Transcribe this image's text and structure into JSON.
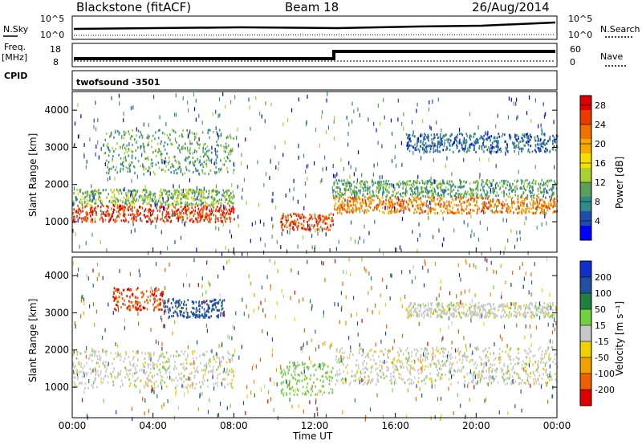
{
  "header": {
    "station": "Blackstone (fitACF)",
    "beam": "Beam 18",
    "date": "26/Aug/2014"
  },
  "side_labels": {
    "nsky": "N.Sky",
    "nsearch": "N.Search",
    "freq": "Freq.",
    "freq_unit": "[MHz]",
    "nave": "Nave",
    "cpid": "CPID",
    "cpid_value": "twofsound  -3501"
  },
  "status_ticks": {
    "nsky_left": [
      "10^5",
      "10^0"
    ],
    "nsearch_right": [
      "10^5",
      "10^0"
    ],
    "freq_left": [
      "18",
      "8"
    ],
    "nave_right": [
      "60",
      "0"
    ]
  },
  "chart_data": [
    {
      "type": "heatmap",
      "name": "power",
      "ylabel": "Slant Range [km]",
      "xlabel": "Time UT",
      "xlim": [
        0,
        24
      ],
      "ylim": [
        180,
        4500
      ],
      "x_ticks": [
        "00:00",
        "04:00",
        "08:00",
        "12:00",
        "16:00",
        "20:00",
        "00:00"
      ],
      "y_ticks": [
        1000,
        2000,
        3000,
        4000
      ],
      "colorbar": {
        "label": "Power [dB]",
        "ticks": [
          4,
          8,
          12,
          16,
          20,
          24,
          28
        ],
        "range": [
          0,
          30
        ],
        "colors": [
          "#0000ff",
          "#1e4db0",
          "#2f8a8a",
          "#5aa05a",
          "#a8d030",
          "#f6e000",
          "#f5a800",
          "#f07000",
          "#ea3a00",
          "#e00000"
        ]
      },
      "bands": [
        {
          "t_start": 0.0,
          "t_end": 8.0,
          "range_start": 1020,
          "range_end": 1480,
          "value": 26
        },
        {
          "t_start": 0.0,
          "t_end": 8.0,
          "range_start": 1480,
          "range_end": 1900,
          "value": 12
        },
        {
          "t_start": 1.5,
          "t_end": 8.0,
          "range_start": 2300,
          "range_end": 3500,
          "value": 10
        },
        {
          "t_start": 10.3,
          "t_end": 12.9,
          "range_start": 800,
          "range_end": 1250,
          "value": 25
        },
        {
          "t_start": 12.9,
          "t_end": 24.0,
          "range_start": 1250,
          "range_end": 1700,
          "value": 22
        },
        {
          "t_start": 12.9,
          "t_end": 24.0,
          "range_start": 1700,
          "range_end": 2150,
          "value": 10
        },
        {
          "t_start": 16.5,
          "t_end": 24.0,
          "range_start": 2900,
          "range_end": 3400,
          "value": 6
        }
      ]
    },
    {
      "type": "heatmap",
      "name": "velocity",
      "ylabel": "Slant Range [km]",
      "xlabel": "Time UT",
      "xlim": [
        0,
        24
      ],
      "ylim": [
        180,
        4500
      ],
      "x_ticks": [
        "00:00",
        "04:00",
        "08:00",
        "12:00",
        "16:00",
        "20:00",
        "00:00"
      ],
      "y_ticks": [
        1000,
        2000,
        3000,
        4000
      ],
      "colorbar": {
        "label": "Velocity [m s⁻¹]",
        "ticks": [
          "200",
          "100",
          "50",
          "15",
          "-15",
          "-50",
          "-100",
          "-200"
        ],
        "colors": [
          "#1030d0",
          "#2050a0",
          "#208040",
          "#70d040",
          "#c8c8c8",
          "#f0d000",
          "#f0a000",
          "#f06000",
          "#e00000"
        ]
      },
      "bands": [
        {
          "t_start": 0.0,
          "t_end": 8.0,
          "range_start": 1000,
          "range_end": 2000,
          "value": 0
        },
        {
          "t_start": 2.0,
          "t_end": 4.5,
          "range_start": 3100,
          "range_end": 3700,
          "value": -200
        },
        {
          "t_start": 4.5,
          "t_end": 7.5,
          "range_start": 2900,
          "range_end": 3400,
          "value": 150
        },
        {
          "t_start": 10.3,
          "t_end": 12.9,
          "range_start": 800,
          "range_end": 1700,
          "value": 30
        },
        {
          "t_start": 12.9,
          "t_end": 24.0,
          "range_start": 1100,
          "range_end": 2100,
          "value": 0
        },
        {
          "t_start": 16.5,
          "t_end": 24.0,
          "range_start": 2900,
          "range_end": 3300,
          "value": 0
        }
      ]
    }
  ]
}
